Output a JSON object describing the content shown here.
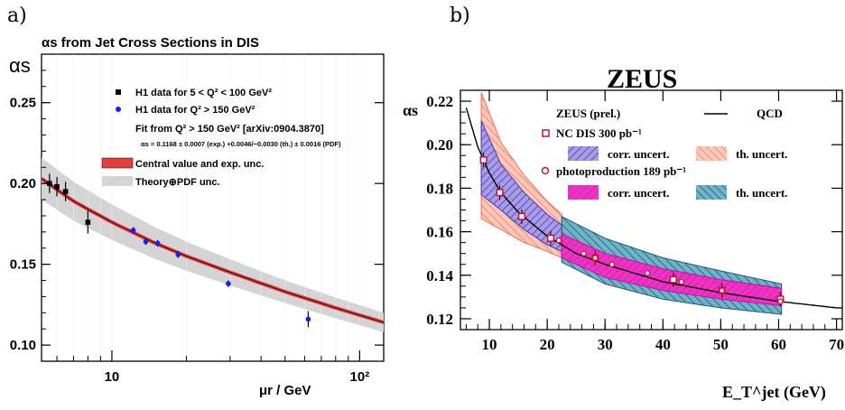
{
  "chart_data": [
    {
      "panel": "a)",
      "type": "scatter",
      "title": "αs from Jet Cross Sections in DIS",
      "ylabel": "αs",
      "xlabel": "μr / GeV",
      "xscale": "log",
      "xlim": [
        5.2,
        125
      ],
      "ylim": [
        0.09,
        0.28
      ],
      "x_ticks": [
        "10",
        "10²"
      ],
      "y_ticks": [
        "0.10",
        "0.15",
        "0.20",
        "0.25"
      ],
      "legend": {
        "h1_low": "H1 data for 5 < Q² < 100 GeV²",
        "h1_high": "H1 data for Q² > 150 GeV²",
        "fit_title": "Fit from Q² > 150 GeV² [arXiv:0904.3870]",
        "fit_formula": "αs = 0.1168 ± 0.0007 (exp.) +0.0046/−0.0030 (th.) ± 0.0016 (PDF)",
        "central": "Central value and exp. unc.",
        "theory": "Theory⊕PDF unc."
      },
      "colors": {
        "low": "#000000",
        "high": "#1a1aff",
        "central": "#e83a3a",
        "band": "#d4d4d4"
      },
      "series": [
        {
          "name": "H1 data for 5 < Q² < 100 GeV²",
          "marker": "square",
          "x": [
            5.6,
            6.0,
            6.5,
            8.0
          ],
          "y": [
            0.2,
            0.198,
            0.195,
            0.176
          ],
          "err": [
            0.006,
            0.006,
            0.006,
            0.007
          ]
        },
        {
          "name": "H1 data for Q² > 150 GeV²",
          "marker": "circle",
          "x": [
            12.2,
            13.7,
            15.3,
            18.5,
            29.5,
            62.0
          ],
          "y": [
            0.171,
            0.164,
            0.163,
            0.156,
            0.138,
            0.116
          ],
          "err": [
            0.002,
            0.002,
            0.002,
            0.002,
            0.002,
            0.005
          ]
        }
      ],
      "fit_curve": {
        "x": [
          5.2,
          7,
          10,
          15,
          20,
          30,
          50,
          80,
          125
        ],
        "y": [
          0.203,
          0.189,
          0.176,
          0.163,
          0.155,
          0.145,
          0.133,
          0.123,
          0.114
        ]
      },
      "band_halfwidth": {
        "x": [
          5.2,
          10,
          20,
          50,
          125
        ],
        "dy": [
          0.013,
          0.011,
          0.009,
          0.007,
          0.006
        ]
      }
    },
    {
      "panel": "b)",
      "type": "scatter",
      "title": "ZEUS",
      "ylabel": "αs",
      "xlabel": "E_T^jet (GeV)",
      "xlim": [
        5,
        71
      ],
      "ylim": [
        0.115,
        0.225
      ],
      "x_ticks": [
        "10",
        "20",
        "30",
        "40",
        "50",
        "60",
        "70"
      ],
      "y_ticks": [
        "0.12",
        "0.14",
        "0.16",
        "0.18",
        "0.20",
        "0.22"
      ],
      "legend": {
        "header": "ZEUS (prel.)",
        "qcd": "QCD",
        "nc": "NC DIS 300 pb⁻¹",
        "corr": "corr. uncert.",
        "th": "th. uncert.",
        "php": "photoproduction 189 pb⁻¹"
      },
      "colors": {
        "nc_marker": "#cc1133",
        "php_marker": "#cc1133",
        "corr_nc": "#6a5acd",
        "th_nc": "#f08070",
        "corr_php": "#ee22bb",
        "th_php": "#2a6f8a"
      },
      "qcd_curve": {
        "x": [
          6,
          8,
          10,
          12,
          15,
          20,
          25,
          30,
          40,
          50,
          60,
          70,
          71
        ],
        "y": [
          0.217,
          0.199,
          0.187,
          0.178,
          0.169,
          0.158,
          0.15,
          0.145,
          0.137,
          0.132,
          0.128,
          0.125,
          0.125
        ]
      },
      "nc_points": {
        "x": [
          9.0,
          11.8,
          15.6,
          20.6,
          28.3,
          41.8,
          50.2,
          60.3
        ],
        "y": [
          0.193,
          0.178,
          0.167,
          0.157,
          0.148,
          0.138,
          0.133,
          0.129
        ]
      },
      "php_points": {
        "x": [
          22.0,
          26.3,
          28.3,
          31.2,
          37.3,
          43.2,
          50.2,
          60.3
        ],
        "y": [
          0.156,
          0.15,
          0.148,
          0.145,
          0.141,
          0.137,
          0.133,
          0.128
        ]
      },
      "nc_band": {
        "x": [
          8.6,
          12,
          16,
          20,
          22.5
        ],
        "corr_lo": [
          0.177,
          0.17,
          0.161,
          0.154,
          0.151
        ],
        "corr_hi": [
          0.211,
          0.191,
          0.178,
          0.168,
          0.163
        ],
        "th_lo": [
          0.166,
          0.161,
          0.155,
          0.151,
          0.148
        ],
        "th_hi": [
          0.224,
          0.201,
          0.186,
          0.174,
          0.168
        ]
      },
      "php_band": {
        "x": [
          22.5,
          30,
          40,
          50,
          60.5
        ],
        "corr_lo": [
          0.148,
          0.139,
          0.133,
          0.129,
          0.126
        ],
        "corr_hi": [
          0.159,
          0.15,
          0.143,
          0.138,
          0.134
        ],
        "th_lo": [
          0.146,
          0.136,
          0.129,
          0.125,
          0.122
        ],
        "th_hi": [
          0.167,
          0.157,
          0.148,
          0.142,
          0.136
        ]
      }
    }
  ]
}
